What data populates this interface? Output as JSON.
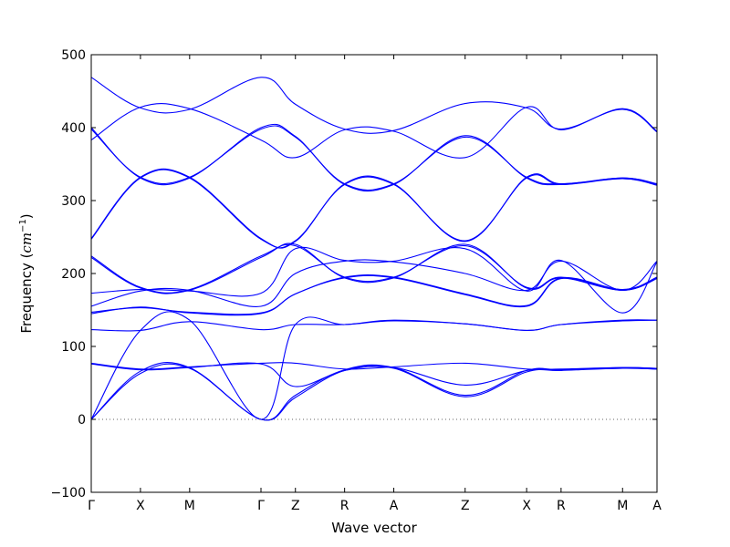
{
  "chart_data": {
    "type": "line",
    "title": "",
    "xlabel": "Wave vector",
    "ylabel": "Frequency",
    "ylabel_unit_base": "cm",
    "ylabel_unit_exp": "−1",
    "ylim": [
      -100,
      500
    ],
    "yticks": [
      -100,
      0,
      100,
      200,
      300,
      400,
      500
    ],
    "xlim": [
      0,
      11.5
    ],
    "xticks": [
      {
        "x": 0.0,
        "label": "Γ"
      },
      {
        "x": 1.0,
        "label": "X"
      },
      {
        "x": 2.0,
        "label": "M"
      },
      {
        "x": 3.45,
        "label": "Γ"
      },
      {
        "x": 4.15,
        "label": "Z"
      },
      {
        "x": 5.15,
        "label": "R"
      },
      {
        "x": 6.15,
        "label": "A"
      },
      {
        "x": 7.6,
        "label": "Z"
      },
      {
        "x": 8.85,
        "label": "X"
      },
      {
        "x": 9.55,
        "label": "R"
      },
      {
        "x": 10.8,
        "label": "M"
      },
      {
        "x": 11.5,
        "label": "A"
      }
    ],
    "zero_line": true,
    "grid": false,
    "line_color": "#0000ff",
    "zero_line_color": "#666666",
    "series": [
      {
        "x": [
          0,
          1,
          2,
          3.45,
          4.15,
          5.15,
          6.15,
          7.6,
          8.85,
          9.55,
          10.8,
          11.5
        ],
        "values": [
          0,
          63,
          70,
          0,
          30,
          67,
          70,
          31,
          65,
          67,
          70,
          69
        ]
      },
      {
        "x": [
          0,
          1,
          2,
          3.45,
          4.15,
          5.15,
          6.15,
          7.6,
          8.85,
          9.55,
          10.8,
          11.5
        ],
        "values": [
          0,
          66,
          71,
          0,
          33,
          68,
          71,
          33,
          67,
          68,
          71,
          70
        ]
      },
      {
        "x": [
          0,
          1,
          2,
          3.45,
          4.15,
          5.15,
          6.15,
          7.6,
          8.85,
          9.55,
          10.8,
          11.5
        ],
        "values": [
          76,
          68,
          71,
          76,
          45,
          67,
          71,
          47,
          67,
          68,
          70,
          69
        ]
      },
      {
        "x": [
          0,
          1,
          2,
          3.45,
          4.15,
          5.15,
          6.15,
          7.6,
          8.85,
          9.55,
          10.8,
          11.5
        ],
        "values": [
          77,
          69,
          72,
          77,
          77,
          69,
          72,
          77,
          69,
          69,
          71,
          70
        ]
      },
      {
        "x": [
          0,
          1,
          2,
          3.45,
          4.15,
          5.15,
          6.15,
          7.6,
          8.85,
          9.55,
          10.8,
          11.5
        ],
        "values": [
          0,
          122,
          136,
          0,
          130,
          130,
          136,
          131,
          122,
          130,
          136,
          136
        ]
      },
      {
        "x": [
          0,
          1,
          2,
          3.45,
          4.15,
          5.15,
          6.15,
          7.6,
          8.85,
          9.55,
          10.8,
          11.5
        ],
        "values": [
          123,
          122,
          134,
          123,
          130,
          130,
          135,
          131,
          122,
          130,
          135,
          136
        ]
      },
      {
        "x": [
          0,
          1,
          2,
          3.45,
          4.15,
          5.15,
          6.15,
          7.6,
          8.85,
          9.55,
          10.8,
          11.5
        ],
        "values": [
          145,
          154,
          146,
          145,
          172,
          194,
          194,
          171,
          155,
          193,
          177,
          193
        ]
      },
      {
        "x": [
          0,
          1,
          2,
          3.45,
          4.15,
          5.15,
          6.15,
          7.6,
          8.85,
          9.55,
          10.8,
          11.5
        ],
        "values": [
          147,
          153,
          147,
          146,
          172,
          195,
          195,
          172,
          156,
          194,
          178,
          194
        ]
      },
      {
        "x": [
          0,
          1,
          2,
          3.45,
          4.15,
          5.15,
          6.15,
          7.6,
          8.85,
          9.55,
          10.8,
          11.5
        ],
        "values": [
          155,
          176,
          177,
          155,
          200,
          217,
          216,
          200,
          177,
          217,
          177,
          217
        ]
      },
      {
        "x": [
          0,
          1,
          2,
          3.45,
          4.15,
          5.15,
          6.15,
          7.6,
          8.85,
          9.55,
          10.8,
          11.5
        ],
        "values": [
          173,
          178,
          176,
          173,
          234,
          218,
          217,
          234,
          176,
          218,
          146,
          216
        ]
      },
      {
        "x": [
          0,
          1,
          2,
          3.45,
          4.15,
          5.15,
          6.15,
          7.6,
          8.85,
          9.55,
          10.8,
          11.5
        ],
        "values": [
          222,
          180,
          177,
          222,
          240,
          194,
          194,
          240,
          180,
          194,
          177,
          194
        ]
      },
      {
        "x": [
          0,
          1,
          2,
          3.45,
          4.15,
          5.15,
          6.15,
          7.6,
          8.85,
          9.55,
          10.8,
          11.5
        ],
        "values": [
          224,
          181,
          178,
          224,
          238,
          195,
          195,
          238,
          181,
          195,
          178,
          195
        ]
      },
      {
        "x": [
          0,
          1,
          2,
          3.45,
          4.15,
          5.15,
          6.15,
          7.6,
          8.85,
          9.55,
          10.8,
          11.5
        ],
        "values": [
          247,
          331,
          331,
          247,
          245,
          322,
          322,
          245,
          331,
          322,
          331,
          322
        ]
      },
      {
        "x": [
          0,
          1,
          2,
          3.45,
          4.15,
          5.15,
          6.15,
          7.6,
          8.85,
          9.55,
          10.8,
          11.5
        ],
        "values": [
          248,
          332,
          332,
          248,
          244,
          323,
          323,
          244,
          332,
          323,
          330,
          321
        ]
      },
      {
        "x": [
          0,
          1,
          2,
          3.45,
          4.15,
          5.15,
          6.15,
          7.6,
          8.85,
          9.55,
          10.8,
          11.5
        ],
        "values": [
          400,
          331,
          331,
          400,
          388,
          322,
          322,
          389,
          331,
          322,
          330,
          322
        ]
      },
      {
        "x": [
          0,
          1,
          2,
          3.45,
          4.15,
          5.15,
          6.15,
          7.6,
          8.85,
          9.55,
          10.8,
          11.5
        ],
        "values": [
          398,
          332,
          332,
          398,
          387,
          323,
          323,
          387,
          332,
          323,
          331,
          323
        ]
      },
      {
        "x": [
          0,
          1,
          2,
          3.45,
          4.15,
          5.15,
          6.15,
          7.6,
          8.85,
          9.55,
          10.8,
          11.5
        ],
        "values": [
          383,
          428,
          426,
          383,
          359,
          397,
          395,
          359,
          428,
          397,
          426,
          395
        ]
      },
      {
        "x": [
          0,
          1,
          2,
          3.45,
          4.15,
          5.15,
          6.15,
          7.6,
          8.85,
          9.55,
          10.8,
          11.5
        ],
        "values": [
          469,
          427,
          425,
          469,
          432,
          398,
          396,
          433,
          427,
          398,
          425,
          394
        ]
      }
    ]
  }
}
